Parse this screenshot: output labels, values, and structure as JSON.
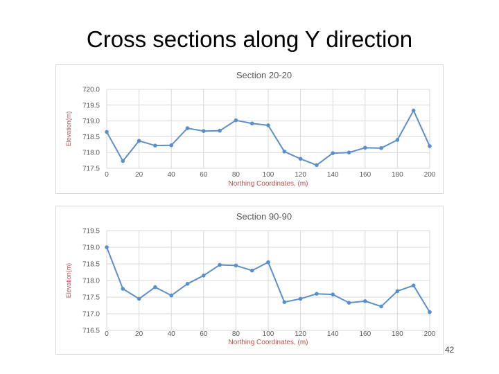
{
  "slide": {
    "title": "Cross sections along Y direction",
    "page_number": "42"
  },
  "colors": {
    "series": "#5b8fc9",
    "axis_title": "#c0504d",
    "grid": "#d9d9d9",
    "tick_text": "#595959",
    "chart_title": "#595959"
  },
  "chart_data": [
    {
      "type": "line",
      "title": "Section 20-20",
      "xlabel": "Northing Coordinates, (m)",
      "ylabel": "Elevation(m)",
      "x": [
        0,
        10,
        20,
        30,
        40,
        50,
        60,
        70,
        80,
        90,
        100,
        110,
        120,
        130,
        140,
        150,
        160,
        170,
        180,
        190,
        200
      ],
      "series": [
        {
          "values": [
            718.65,
            717.73,
            718.37,
            718.22,
            718.23,
            718.77,
            718.68,
            718.69,
            719.02,
            718.92,
            718.86,
            718.03,
            717.8,
            717.6,
            717.98,
            718.0,
            718.15,
            718.14,
            718.4,
            719.33,
            718.2
          ]
        }
      ],
      "xlim": [
        0,
        200
      ],
      "ylim": [
        717.5,
        720.0
      ],
      "xticks": [
        "0",
        "20",
        "40",
        "60",
        "80",
        "100",
        "120",
        "140",
        "160",
        "180",
        "200"
      ],
      "yticks": [
        "720.0",
        "719.5",
        "719.0",
        "718.5",
        "718.0",
        "717.5"
      ],
      "grid": true,
      "legend": "none"
    },
    {
      "type": "line",
      "title": "Section 90-90",
      "xlabel": "Northing Coordinates, (m)",
      "ylabel": "Elevation(m)",
      "x": [
        0,
        10,
        20,
        30,
        40,
        50,
        60,
        70,
        80,
        90,
        100,
        110,
        120,
        130,
        140,
        150,
        160,
        170,
        180,
        190,
        200
      ],
      "series": [
        {
          "values": [
            719.0,
            717.75,
            717.45,
            717.8,
            717.55,
            717.9,
            718.15,
            718.47,
            718.45,
            718.3,
            718.55,
            717.35,
            717.45,
            717.6,
            717.58,
            717.33,
            717.38,
            717.22,
            717.68,
            717.85,
            717.05
          ]
        }
      ],
      "xlim": [
        0,
        200
      ],
      "ylim": [
        716.5,
        719.5
      ],
      "xticks": [
        "0",
        "20",
        "40",
        "60",
        "80",
        "100",
        "120",
        "140",
        "160",
        "180",
        "200"
      ],
      "yticks": [
        "719.5",
        "719.0",
        "718.5",
        "718.0",
        "717.5",
        "717.0",
        "716.5"
      ],
      "grid": true,
      "legend": "none"
    }
  ]
}
